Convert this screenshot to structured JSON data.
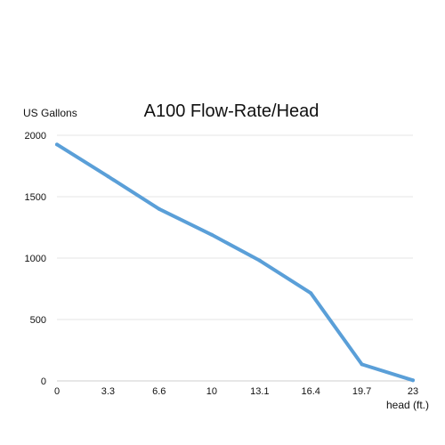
{
  "chart_data": {
    "type": "line",
    "title": "A100 Flow-Rate/Head",
    "ylabel": "US Gallons",
    "xlabel": "head (ft.)",
    "x": [
      0,
      3.3,
      6.6,
      10,
      13.1,
      16.4,
      19.7,
      23
    ],
    "x_tick_labels": [
      "0",
      "3.3",
      "6.6",
      "10",
      "13.1",
      "16.4",
      "19.7",
      "23"
    ],
    "series": [
      {
        "values": [
          1925,
          1665,
          1400,
          1190,
          980,
          715,
          135,
          5
        ],
        "color": "#5a9fd8"
      }
    ],
    "y_ticks": [
      0,
      500,
      1000,
      1500,
      2000
    ],
    "ylim": [
      0,
      2000
    ],
    "grid": true,
    "legend": "none"
  }
}
